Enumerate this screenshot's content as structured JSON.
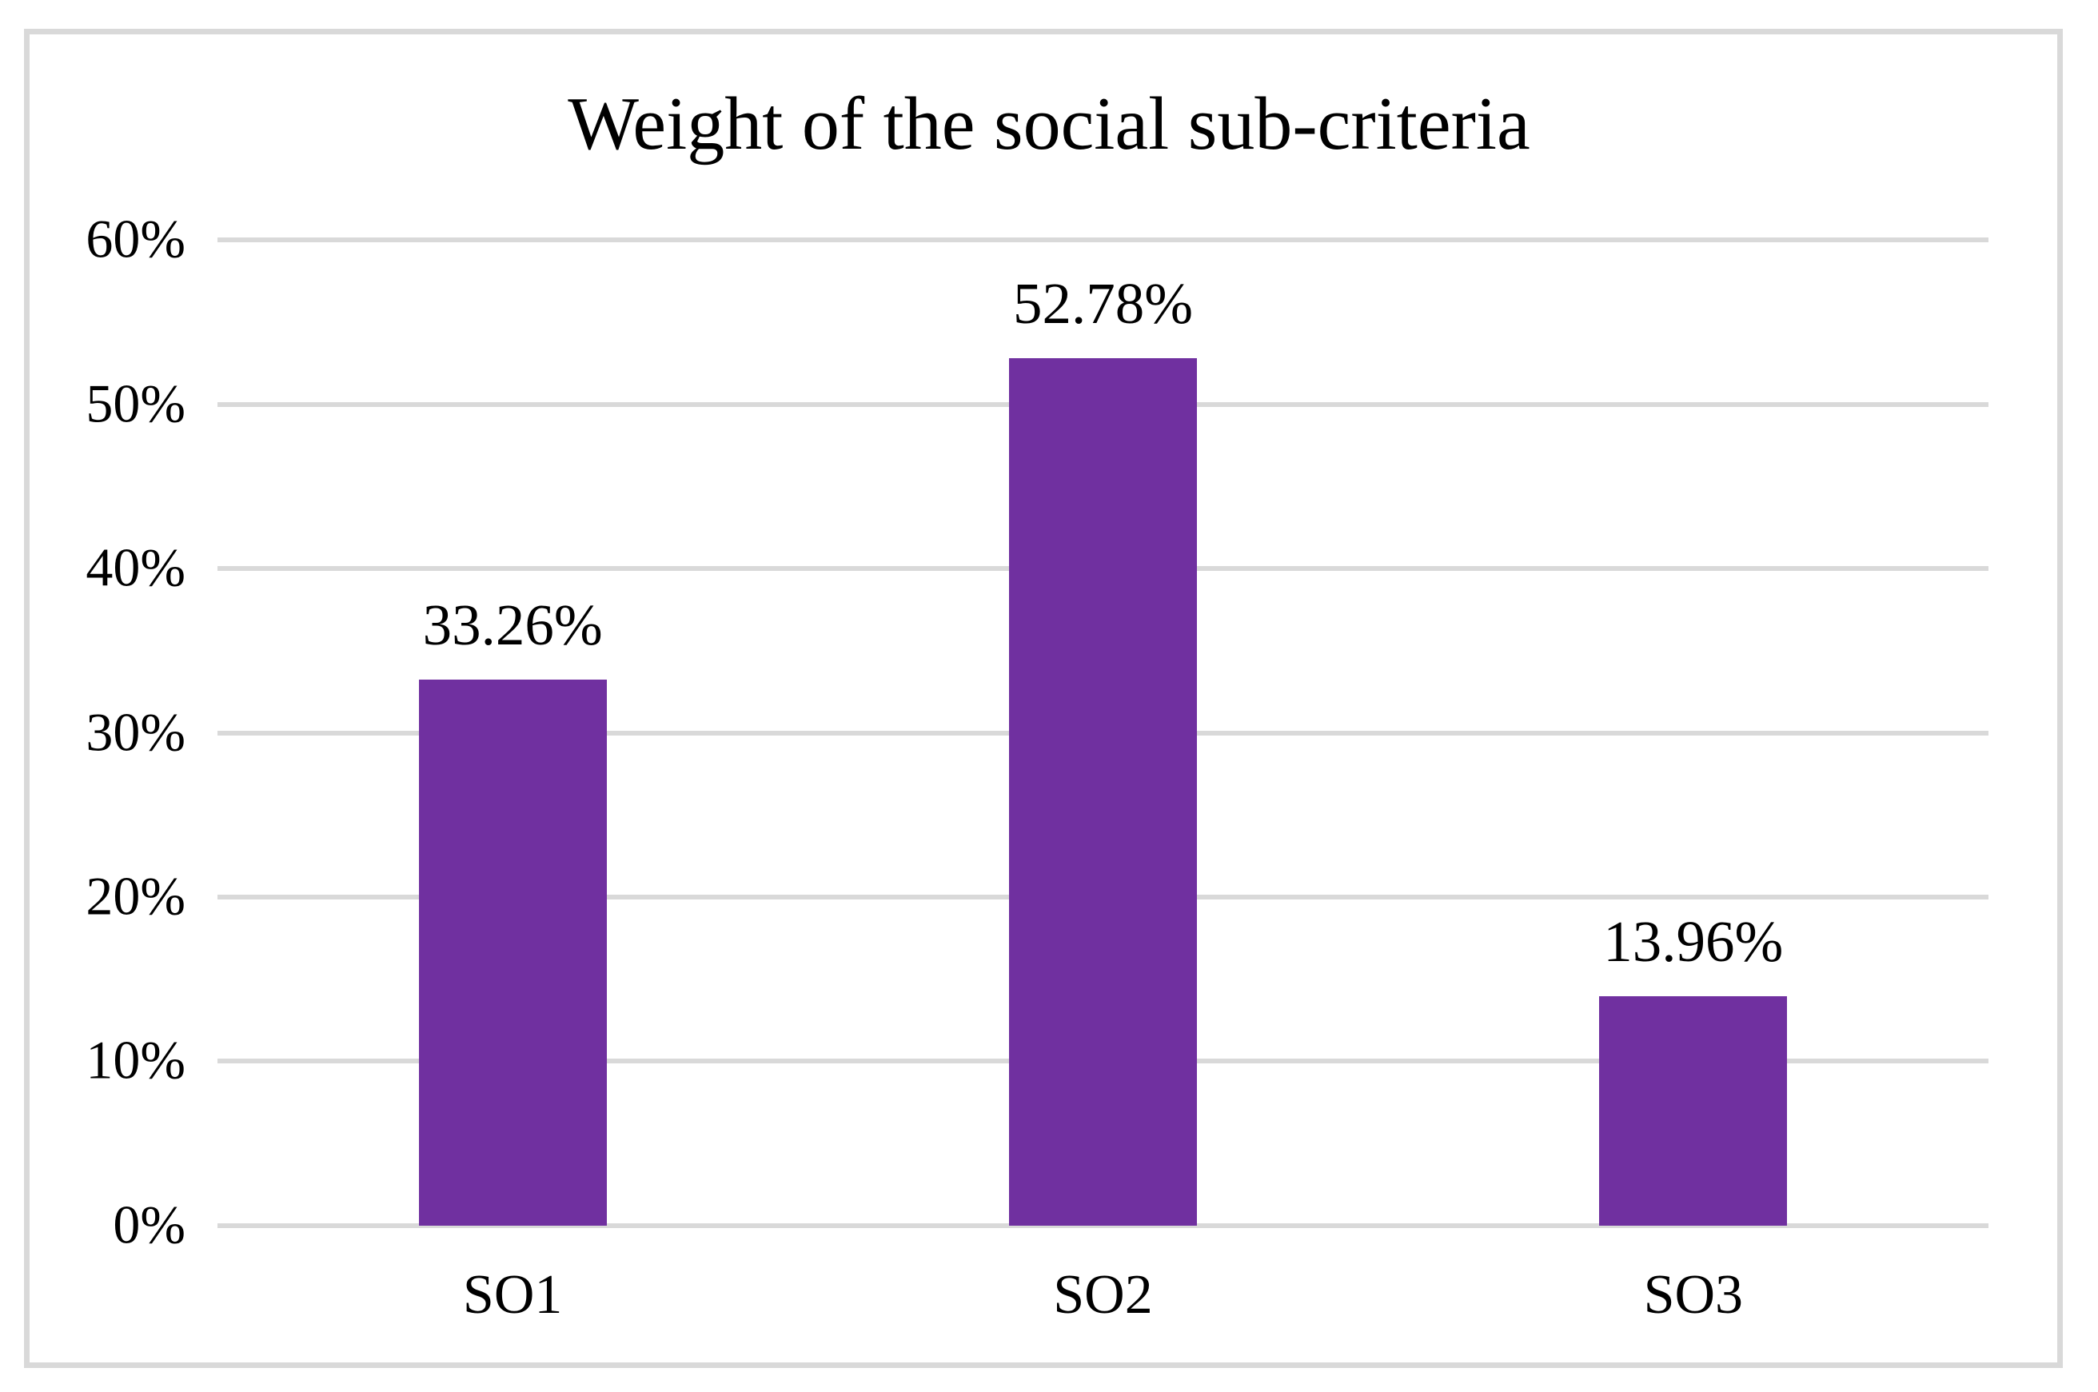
{
  "chart_data": {
    "type": "bar",
    "title": "Weight of the social sub-criteria",
    "categories": [
      "SO1",
      "SO2",
      "SO3"
    ],
    "values": [
      33.26,
      52.78,
      13.96
    ],
    "value_labels": [
      "33.26%",
      "52.78%",
      "13.96%"
    ],
    "yticks": [
      "60%",
      "50%",
      "40%",
      "30%",
      "20%",
      "10%",
      "0%"
    ],
    "ylim": [
      0,
      60
    ],
    "xlabel": "",
    "ylabel": "",
    "grid": "horizontal",
    "legend": "none",
    "bar_color": "#7030a0",
    "gridline_color": "#d9d9d9",
    "frame_color": "#d9d9d9",
    "text_color": "#000000",
    "background_color": "#ffffff"
  }
}
